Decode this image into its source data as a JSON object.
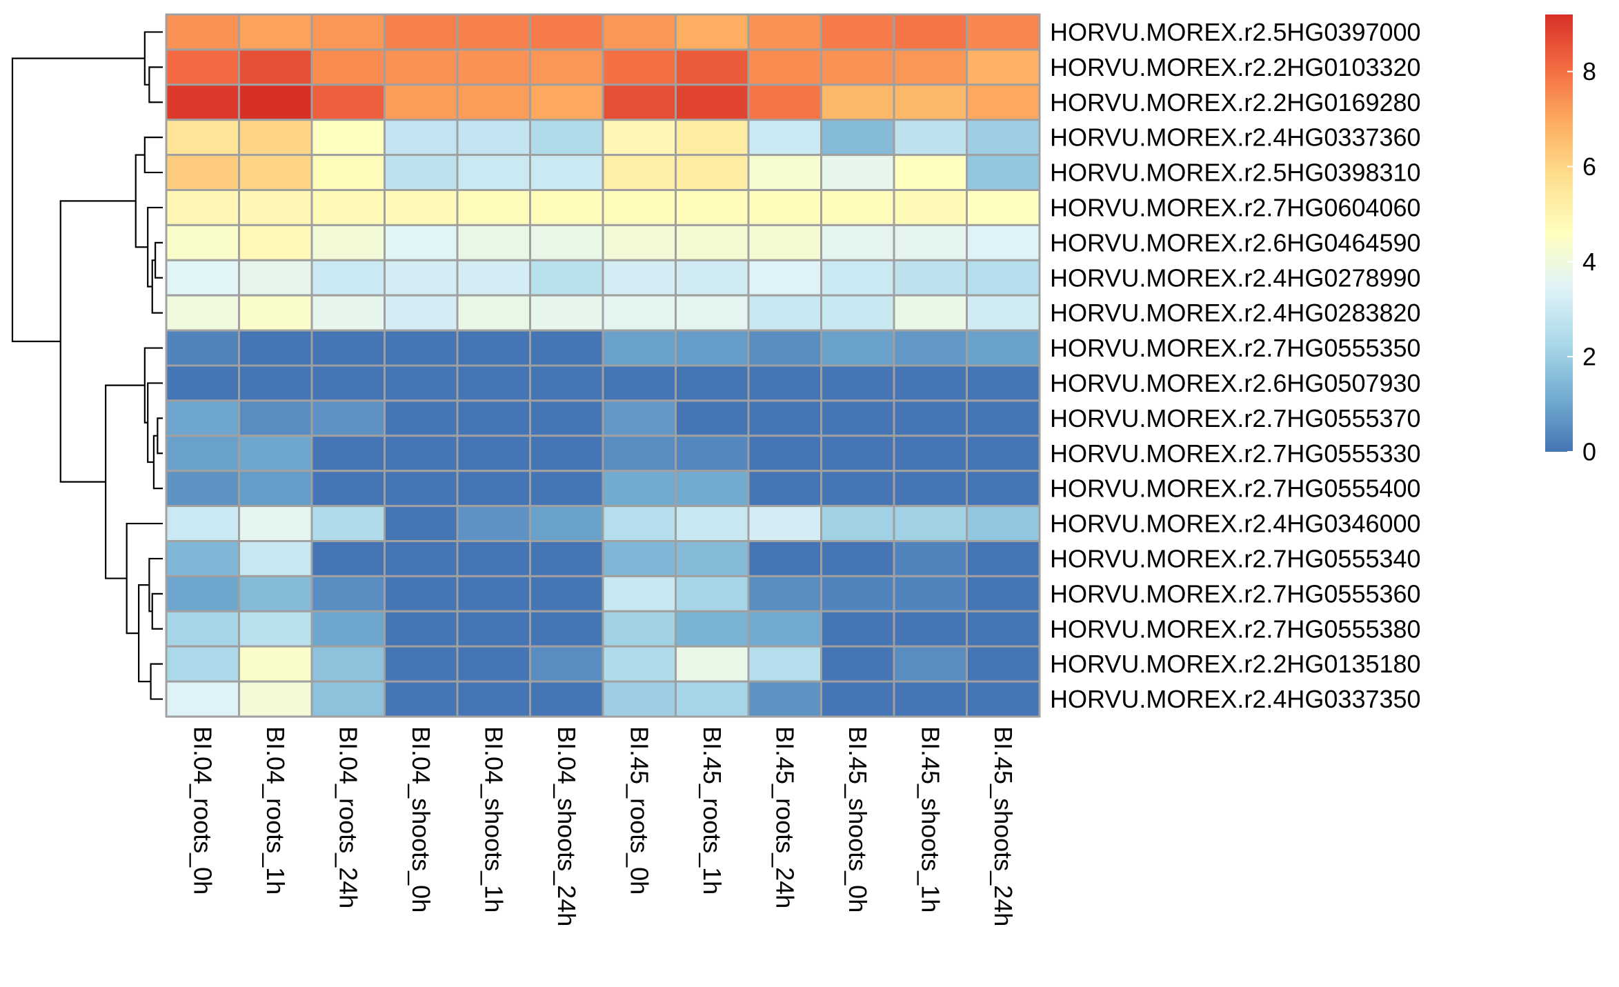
{
  "chart_data": {
    "type": "heatmap",
    "title": "",
    "xlabel": "",
    "ylabel": "",
    "rows": [
      "HORVU.MOREX.r2.5HG0397000",
      "HORVU.MOREX.r2.2HG0103320",
      "HORVU.MOREX.r2.2HG0169280",
      "HORVU.MOREX.r2.4HG0337360",
      "HORVU.MOREX.r2.5HG0398310",
      "HORVU.MOREX.r2.7HG0604060",
      "HORVU.MOREX.r2.6HG0464590",
      "HORVU.MOREX.r2.4HG0278990",
      "HORVU.MOREX.r2.4HG0283820",
      "HORVU.MOREX.r2.7HG0555350",
      "HORVU.MOREX.r2.6HG0507930",
      "HORVU.MOREX.r2.7HG0555370",
      "HORVU.MOREX.r2.7HG0555330",
      "HORVU.MOREX.r2.7HG0555400",
      "HORVU.MOREX.r2.4HG0346000",
      "HORVU.MOREX.r2.7HG0555340",
      "HORVU.MOREX.r2.7HG0555360",
      "HORVU.MOREX.r2.7HG0555380",
      "HORVU.MOREX.r2.2HG0135180",
      "HORVU.MOREX.r2.4HG0337350"
    ],
    "columns": [
      "BI.04_roots_0h",
      "BI.04_roots_1h",
      "BI.04_roots_24h",
      "BI.04_shoots_0h",
      "BI.04_shoots_1h",
      "BI.04_shoots_24h",
      "BI.45_roots_0h",
      "BI.45_roots_1h",
      "BI.45_roots_24h",
      "BI.45_shoots_0h",
      "BI.45_shoots_1h",
      "BI.45_shoots_24h"
    ],
    "values": [
      [
        7.4,
        7.1,
        7.3,
        7.7,
        7.7,
        7.8,
        7.3,
        6.9,
        7.4,
        7.8,
        7.9,
        7.6
      ],
      [
        8.1,
        8.6,
        7.5,
        7.4,
        7.4,
        7.3,
        8.0,
        8.4,
        7.5,
        7.4,
        7.3,
        6.8
      ],
      [
        9.0,
        9.2,
        8.3,
        7.2,
        7.2,
        7.0,
        8.6,
        8.8,
        7.9,
        6.7,
        6.7,
        7.0
      ],
      [
        5.6,
        6.0,
        4.6,
        2.8,
        2.8,
        2.4,
        4.9,
        5.3,
        3.0,
        1.5,
        2.7,
        2.0
      ],
      [
        6.2,
        6.0,
        4.7,
        2.7,
        3.0,
        3.0,
        5.2,
        5.3,
        4.3,
        3.7,
        4.6,
        1.8
      ],
      [
        4.9,
        4.9,
        4.8,
        4.8,
        4.7,
        4.7,
        4.7,
        4.7,
        4.7,
        4.7,
        4.8,
        4.6
      ],
      [
        4.4,
        4.8,
        4.1,
        3.5,
        3.8,
        3.8,
        4.1,
        4.2,
        4.2,
        3.6,
        3.6,
        3.4
      ],
      [
        3.5,
        3.7,
        3.0,
        3.2,
        3.2,
        2.6,
        3.2,
        3.1,
        3.4,
        3.0,
        2.7,
        2.5
      ],
      [
        4.0,
        4.4,
        3.7,
        3.2,
        3.8,
        3.7,
        3.6,
        3.6,
        2.9,
        2.9,
        3.8,
        3.1
      ],
      [
        0.3,
        0.0,
        0.0,
        0.0,
        0.0,
        0.0,
        0.9,
        0.8,
        0.5,
        0.9,
        0.7,
        0.9
      ],
      [
        0.0,
        0.0,
        0.0,
        0.0,
        0.0,
        0.0,
        0.0,
        0.0,
        0.0,
        0.0,
        0.0,
        0.0
      ],
      [
        1.0,
        0.5,
        0.6,
        0.0,
        0.0,
        0.0,
        0.7,
        0.0,
        0.0,
        0.0,
        0.0,
        0.0
      ],
      [
        0.9,
        1.0,
        0.0,
        0.0,
        0.0,
        0.0,
        0.5,
        0.4,
        0.0,
        0.0,
        0.0,
        0.0
      ],
      [
        0.6,
        0.8,
        0.0,
        0.0,
        0.0,
        0.0,
        1.1,
        1.1,
        0.0,
        0.0,
        0.0,
        0.0
      ],
      [
        3.0,
        3.6,
        2.4,
        0.0,
        0.6,
        0.9,
        2.5,
        2.9,
        3.2,
        2.1,
        2.1,
        1.8
      ],
      [
        1.4,
        2.9,
        0.0,
        0.0,
        0.0,
        0.0,
        1.4,
        1.5,
        0.0,
        0.0,
        0.3,
        0.0
      ],
      [
        1.0,
        1.5,
        0.5,
        0.0,
        0.0,
        0.0,
        2.9,
        2.2,
        0.5,
        0.3,
        0.3,
        0.0
      ],
      [
        2.2,
        2.6,
        1.0,
        0.0,
        0.0,
        0.0,
        2.1,
        1.3,
        1.1,
        0.0,
        0.0,
        0.0
      ],
      [
        2.3,
        4.4,
        1.7,
        0.0,
        0.0,
        0.5,
        2.4,
        3.8,
        2.5,
        0.0,
        0.5,
        0.0
      ],
      [
        3.4,
        4.1,
        1.7,
        0.0,
        0.0,
        0.0,
        2.0,
        2.2,
        0.6,
        0.0,
        0.0,
        0.0
      ]
    ],
    "color_scale": {
      "min": 0,
      "max": 9.2,
      "stops": [
        {
          "value": 0,
          "color": "#4575B4"
        },
        {
          "value": 1.15,
          "color": "#74ADD1"
        },
        {
          "value": 2.3,
          "color": "#ABD9E9"
        },
        {
          "value": 3.45,
          "color": "#E0F3F8"
        },
        {
          "value": 4.6,
          "color": "#FFFFBF"
        },
        {
          "value": 5.75,
          "color": "#FEE090"
        },
        {
          "value": 6.9,
          "color": "#FDAE61"
        },
        {
          "value": 8.05,
          "color": "#F46D43"
        },
        {
          "value": 9.2,
          "color": "#D73027"
        }
      ]
    },
    "legend": {
      "position": "top-right",
      "ticks": [
        "0",
        "2",
        "4",
        "6",
        "8"
      ],
      "tick_values": [
        0,
        2,
        4,
        6,
        8
      ]
    },
    "cell_border_color": "#A0A0A0",
    "row_dendrogram": {
      "position": "left",
      "merges": [
        [
          -2,
          -3,
          0.9
        ],
        [
          -1,
          1,
          1.2
        ],
        [
          -7,
          -8,
          0.5
        ],
        [
          -9,
          3,
          0.7
        ],
        [
          -6,
          4,
          1.0
        ],
        [
          -4,
          -5,
          1.2
        ],
        [
          6,
          5,
          1.8
        ],
        [
          -12,
          -13,
          0.35
        ],
        [
          -14,
          8,
          0.6
        ],
        [
          -11,
          9,
          1.0
        ],
        [
          -17,
          -18,
          0.7
        ],
        [
          -16,
          11,
          0.9
        ],
        [
          -19,
          -20,
          0.8
        ],
        [
          12,
          13,
          1.6
        ],
        [
          -15,
          14,
          2.4
        ],
        [
          -10,
          10,
          1.2
        ],
        [
          16,
          15,
          3.8
        ],
        [
          7,
          17,
          6.8
        ],
        [
          2,
          18,
          10.0
        ]
      ]
    }
  }
}
